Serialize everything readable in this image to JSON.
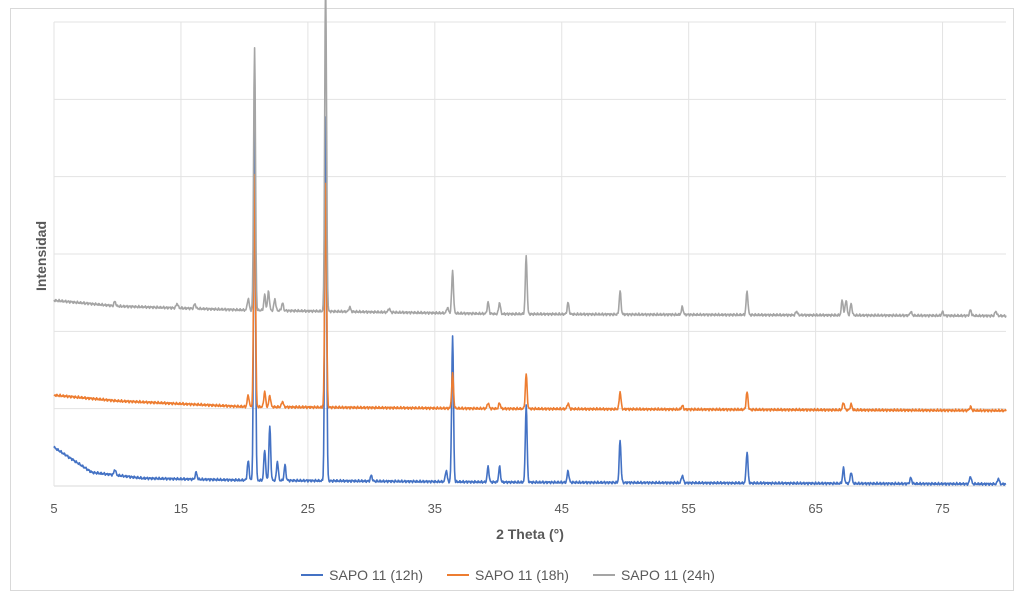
{
  "chart_data": {
    "type": "line",
    "title": "",
    "xlabel": "2 Theta (°)",
    "ylabel": "Intensidad",
    "xlim": [
      5,
      80
    ],
    "x_ticks": [
      5,
      15,
      25,
      35,
      45,
      55,
      65,
      75
    ],
    "y_tick_labels_shown": false,
    "grid": true,
    "legend_position": "bottom",
    "series": [
      {
        "name": "SAPO 11 (12h)",
        "color": "#4472c4",
        "baseline": [
          [
            5,
            10
          ],
          [
            8,
            3.5
          ],
          [
            12,
            2
          ],
          [
            20,
            1.5
          ],
          [
            40,
            1
          ],
          [
            80,
            0.5
          ]
        ],
        "peaks": [
          [
            9.8,
            1.5
          ],
          [
            16.2,
            1.8
          ],
          [
            20.3,
            5
          ],
          [
            20.8,
            92
          ],
          [
            21.6,
            8
          ],
          [
            22.0,
            14
          ],
          [
            22.6,
            5
          ],
          [
            23.2,
            4
          ],
          [
            26.4,
            94
          ],
          [
            30,
            1.5
          ],
          [
            35.9,
            3
          ],
          [
            36.4,
            38
          ],
          [
            39.2,
            4
          ],
          [
            40.1,
            4
          ],
          [
            42.2,
            20
          ],
          [
            45.5,
            3
          ],
          [
            49.6,
            11
          ],
          [
            54.5,
            2
          ],
          [
            59.6,
            8
          ],
          [
            67.2,
            4
          ],
          [
            67.8,
            3
          ],
          [
            72.5,
            1.5
          ],
          [
            77.2,
            2
          ],
          [
            79.4,
            1.5
          ]
        ]
      },
      {
        "name": "SAPO 11 (18h)",
        "color": "#ed7d31",
        "baseline": [
          [
            5,
            23.5
          ],
          [
            10,
            22
          ],
          [
            20,
            20.5
          ],
          [
            40,
            20
          ],
          [
            80,
            19.5
          ]
        ],
        "peaks": [
          [
            20.3,
            3
          ],
          [
            20.8,
            60
          ],
          [
            21.6,
            4
          ],
          [
            22.0,
            3
          ],
          [
            23.0,
            1.5
          ],
          [
            26.4,
            58
          ],
          [
            36.4,
            9
          ],
          [
            39.2,
            1.5
          ],
          [
            40.1,
            1.5
          ],
          [
            42.2,
            9
          ],
          [
            45.5,
            1.5
          ],
          [
            49.6,
            4.5
          ],
          [
            54.5,
            1
          ],
          [
            59.6,
            4.5
          ],
          [
            67.2,
            2
          ],
          [
            67.8,
            1.5
          ],
          [
            77.2,
            1
          ]
        ]
      },
      {
        "name": "SAPO 11 (24h)",
        "color": "#a5a5a5",
        "baseline": [
          [
            5,
            48
          ],
          [
            10,
            46.5
          ],
          [
            20,
            45.5
          ],
          [
            40,
            44.5
          ],
          [
            80,
            44
          ]
        ],
        "peaks": [
          [
            9.8,
            1.2
          ],
          [
            14.7,
            1.2
          ],
          [
            16.1,
            1.2
          ],
          [
            20.3,
            3
          ],
          [
            20.8,
            68
          ],
          [
            21.6,
            4
          ],
          [
            21.9,
            5
          ],
          [
            22.4,
            3
          ],
          [
            23.0,
            2
          ],
          [
            26.4,
            86
          ],
          [
            28.3,
            1.2
          ],
          [
            31.4,
            1
          ],
          [
            36.0,
            1.5
          ],
          [
            36.4,
            11
          ],
          [
            39.2,
            3
          ],
          [
            40.1,
            3
          ],
          [
            42.2,
            15
          ],
          [
            45.5,
            3
          ],
          [
            49.6,
            6
          ],
          [
            54.5,
            2
          ],
          [
            59.6,
            6
          ],
          [
            63.5,
            1
          ],
          [
            67.1,
            4
          ],
          [
            67.4,
            4
          ],
          [
            67.8,
            3
          ],
          [
            72.5,
            1
          ],
          [
            75.0,
            1
          ],
          [
            77.2,
            1.5
          ],
          [
            79.2,
            1.2
          ]
        ]
      }
    ]
  }
}
